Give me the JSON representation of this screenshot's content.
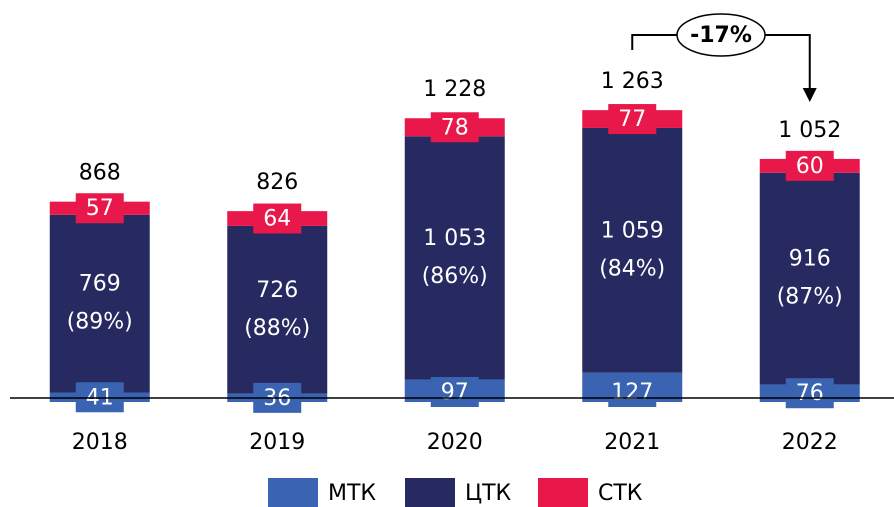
{
  "chart_data": {
    "type": "stacked_bar",
    "categories": [
      "2018",
      "2019",
      "2020",
      "2021",
      "2022"
    ],
    "series": [
      {
        "name": "МТК",
        "color": "#3a63b2",
        "values": [
          41,
          36,
          97,
          127,
          76
        ]
      },
      {
        "name": "ЦТК",
        "color": "#262a61",
        "values": [
          769,
          726,
          1053,
          1059,
          916
        ],
        "value_labels": [
          "769",
          "726",
          "1 053",
          "1 059",
          "916"
        ],
        "shares": [
          {
            "value": 89,
            "label": "(89%)"
          },
          {
            "value": 88,
            "label": "(88%)"
          },
          {
            "value": 86,
            "label": "(86%)"
          },
          {
            "value": 84,
            "label": "(84%)"
          },
          {
            "value": 87,
            "label": "(87%)"
          }
        ]
      },
      {
        "name": "СТК",
        "color": "#e8194a",
        "values": [
          57,
          64,
          78,
          77,
          60
        ]
      }
    ],
    "totals": {
      "values": [
        868,
        826,
        1228,
        1263,
        1052
      ],
      "value_labels": [
        "868",
        "826",
        "1 228",
        "1 263",
        "1 052"
      ]
    },
    "annotation": {
      "label": "-17%",
      "from": "2021",
      "to": "2022"
    },
    "ylim": [
      0,
      1400
    ]
  }
}
